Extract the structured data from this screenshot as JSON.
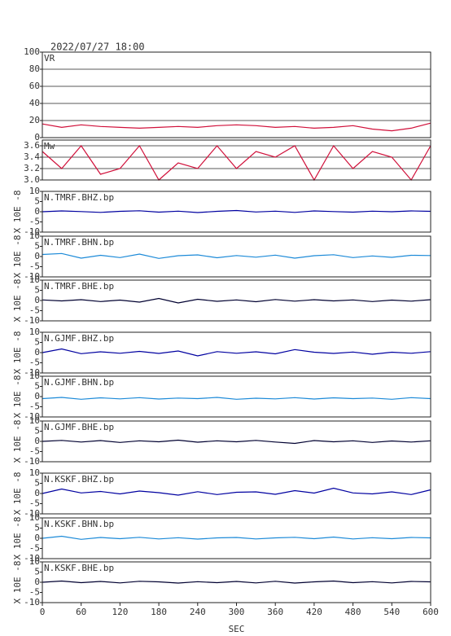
{
  "chart_data": [
    {
      "type": "line",
      "title": "2022/07/27 18:00",
      "label": "VR",
      "color": "#d0103a",
      "x": [
        0,
        30,
        60,
        90,
        120,
        150,
        180,
        210,
        240,
        270,
        300,
        330,
        360,
        390,
        420,
        450,
        480,
        510,
        540,
        570,
        600
      ],
      "values": [
        16,
        12,
        15,
        13,
        12,
        11,
        12,
        13,
        12,
        14,
        15,
        14,
        12,
        13,
        11,
        12,
        14,
        10,
        8,
        11,
        17
      ],
      "xlim": [
        0,
        600
      ],
      "ylim": [
        0,
        100
      ],
      "yticks": [
        0,
        20,
        40,
        60,
        80,
        100
      ],
      "grid": true
    },
    {
      "type": "line",
      "label": "Mw",
      "color": "#d0103a",
      "x": [
        0,
        30,
        60,
        90,
        120,
        150,
        180,
        210,
        240,
        270,
        300,
        330,
        360,
        390,
        420,
        450,
        480,
        510,
        540,
        570,
        600
      ],
      "values": [
        3.5,
        3.2,
        3.6,
        3.1,
        3.2,
        3.6,
        3.0,
        3.3,
        3.2,
        3.6,
        3.2,
        3.5,
        3.4,
        3.6,
        3.0,
        3.6,
        3.2,
        3.5,
        3.4,
        3.0,
        3.6
      ],
      "xlim": [
        0,
        600
      ],
      "ylim": [
        3.0,
        3.7
      ],
      "yticks": [
        {
          "value": 3,
          "label": "3.0"
        },
        3.2,
        3.4,
        3.6
      ],
      "grid": true
    },
    {
      "type": "line",
      "label": "N.TMRF.BHZ.bp",
      "ylabel": "X 10E -8",
      "color": "#0000a0",
      "x": [
        0,
        30,
        60,
        90,
        120,
        150,
        180,
        210,
        240,
        270,
        300,
        330,
        360,
        390,
        420,
        450,
        480,
        510,
        540,
        570,
        600
      ],
      "values": [
        0,
        0.4,
        0.1,
        -0.3,
        0.2,
        0.5,
        -0.2,
        0.3,
        -0.4,
        0.2,
        0.6,
        -0.1,
        0.3,
        -0.3,
        0.4,
        0.1,
        -0.2,
        0.3,
        0,
        0.4,
        0.2
      ],
      "xlim": [
        0,
        600
      ],
      "ylim": [
        -10,
        10
      ],
      "yticks": [
        -10,
        -5,
        0,
        5,
        10
      ]
    },
    {
      "type": "line",
      "label": "N.TMRF.BHN.bp",
      "ylabel": "X 10E -8",
      "color": "#1c8ad8",
      "x": [
        0,
        30,
        60,
        90,
        120,
        150,
        180,
        210,
        240,
        270,
        300,
        330,
        360,
        390,
        420,
        450,
        480,
        510,
        540,
        570,
        600
      ],
      "values": [
        1,
        1.5,
        -0.8,
        0.6,
        -0.5,
        1.2,
        -0.9,
        0.4,
        0.8,
        -0.6,
        0.5,
        -0.3,
        0.7,
        -0.8,
        0.4,
        0.9,
        -0.5,
        0.3,
        -0.4,
        0.6,
        0.5
      ],
      "xlim": [
        0,
        600
      ],
      "ylim": [
        -10,
        10
      ],
      "yticks": [
        -10,
        -5,
        0,
        5,
        10
      ]
    },
    {
      "type": "line",
      "label": "N.TMRF.BHE.bp",
      "ylabel": "X 10E -8",
      "color": "#000030",
      "x": [
        0,
        30,
        60,
        90,
        120,
        150,
        180,
        210,
        240,
        270,
        300,
        330,
        360,
        390,
        420,
        450,
        480,
        510,
        540,
        570,
        600
      ],
      "values": [
        0.3,
        -0.2,
        0.4,
        -0.5,
        0.2,
        -0.8,
        1.0,
        -1.2,
        0.6,
        -0.4,
        0.3,
        -0.6,
        0.5,
        -0.3,
        0.4,
        -0.2,
        0.3,
        -0.5,
        0.2,
        -0.3,
        0.4
      ],
      "xlim": [
        0,
        600
      ],
      "ylim": [
        -10,
        10
      ],
      "yticks": [
        -10,
        -5,
        0,
        5,
        10
      ]
    },
    {
      "type": "line",
      "label": "N.GJMF.BHZ.bp",
      "ylabel": "X 10E -8",
      "color": "#0000a0",
      "x": [
        0,
        30,
        60,
        90,
        120,
        150,
        180,
        210,
        240,
        270,
        300,
        330,
        360,
        390,
        420,
        450,
        480,
        510,
        540,
        570,
        600
      ],
      "values": [
        0,
        1.8,
        -0.5,
        0.4,
        -0.3,
        0.6,
        -0.4,
        0.8,
        -1.6,
        0.5,
        -0.3,
        0.4,
        -0.6,
        1.5,
        0.2,
        -0.4,
        0.3,
        -0.8,
        0.2,
        -0.3,
        0.5
      ],
      "xlim": [
        0,
        600
      ],
      "ylim": [
        -10,
        10
      ],
      "yticks": [
        -10,
        -5,
        0,
        5,
        10
      ]
    },
    {
      "type": "line",
      "label": "N.GJMF.BHN.bp",
      "ylabel": "X 10E -8",
      "color": "#1c8ad8",
      "x": [
        0,
        30,
        60,
        90,
        120,
        150,
        180,
        210,
        240,
        270,
        300,
        330,
        360,
        390,
        420,
        450,
        480,
        510,
        540,
        570,
        600
      ],
      "values": [
        -1,
        -0.4,
        -1.3,
        -0.6,
        -1.1,
        -0.5,
        -1.2,
        -0.7,
        -1.0,
        -0.4,
        -1.3,
        -0.8,
        -1.1,
        -0.5,
        -1.2,
        -0.6,
        -1.0,
        -0.7,
        -1.3,
        -0.5,
        -1.0
      ],
      "xlim": [
        0,
        600
      ],
      "ylim": [
        -10,
        10
      ],
      "yticks": [
        -10,
        -5,
        0,
        5,
        10
      ]
    },
    {
      "type": "line",
      "label": "N.GJMF.BHE.bp",
      "ylabel": "X 10E -8",
      "color": "#000030",
      "x": [
        0,
        30,
        60,
        90,
        120,
        150,
        180,
        210,
        240,
        270,
        300,
        330,
        360,
        390,
        420,
        450,
        480,
        510,
        540,
        570,
        600
      ],
      "values": [
        0,
        0.5,
        -0.3,
        0.4,
        -0.5,
        0.3,
        -0.2,
        0.6,
        -0.4,
        0.3,
        -0.2,
        0.5,
        -0.3,
        -1.0,
        0.4,
        -0.2,
        0.3,
        -0.5,
        0.2,
        -0.3,
        0.3
      ],
      "xlim": [
        0,
        600
      ],
      "ylim": [
        -10,
        10
      ],
      "yticks": [
        -10,
        -5,
        0,
        5,
        10
      ]
    },
    {
      "type": "line",
      "label": "N.KSKF.BHZ.bp",
      "ylabel": "X 10E -8",
      "color": "#0000a0",
      "x": [
        0,
        30,
        60,
        90,
        120,
        150,
        180,
        210,
        240,
        270,
        300,
        330,
        360,
        390,
        420,
        450,
        480,
        510,
        540,
        570,
        600
      ],
      "values": [
        0,
        2.2,
        0.3,
        1.0,
        -0.2,
        1.2,
        0.4,
        -0.8,
        0.9,
        -0.5,
        0.6,
        0.8,
        -0.4,
        1.4,
        0.2,
        2.6,
        0.3,
        -0.2,
        0.8,
        -0.5,
        1.8
      ],
      "xlim": [
        0,
        600
      ],
      "ylim": [
        -10,
        10
      ],
      "yticks": [
        -10,
        -5,
        0,
        5,
        10
      ]
    },
    {
      "type": "line",
      "label": "N.KSKF.BHN.bp",
      "ylabel": "X 10E -8",
      "color": "#1c8ad8",
      "x": [
        0,
        30,
        60,
        90,
        120,
        150,
        180,
        210,
        240,
        270,
        300,
        330,
        360,
        390,
        420,
        450,
        480,
        510,
        540,
        570,
        600
      ],
      "values": [
        0,
        1.0,
        -0.5,
        0.4,
        -0.2,
        0.5,
        -0.3,
        0.3,
        -0.4,
        0.2,
        0.4,
        -0.3,
        0.2,
        0.5,
        -0.2,
        0.6,
        -0.3,
        0.3,
        -0.2,
        0.4,
        0.2
      ],
      "xlim": [
        0,
        600
      ],
      "ylim": [
        -10,
        10
      ],
      "yticks": [
        -10,
        -5,
        0,
        5,
        10
      ]
    },
    {
      "type": "line",
      "label": "N.KSKF.BHE.bp",
      "ylabel": "X 10E -8",
      "xlabel": "SEC",
      "color": "#000030",
      "x": [
        0,
        30,
        60,
        90,
        120,
        150,
        180,
        210,
        240,
        270,
        300,
        330,
        360,
        390,
        420,
        450,
        480,
        510,
        540,
        570,
        600
      ],
      "values": [
        0,
        0.6,
        -0.2,
        0.4,
        -0.3,
        0.5,
        0.2,
        -0.4,
        0.3,
        -0.2,
        0.4,
        -0.3,
        0.5,
        -0.4,
        0.2,
        0.6,
        -0.2,
        0.3,
        -0.3,
        0.4,
        0.2
      ],
      "xlim": [
        0,
        600
      ],
      "ylim": [
        -10,
        10
      ],
      "yticks": [
        -10,
        -5,
        0,
        5,
        10
      ],
      "xticks": [
        0,
        60,
        120,
        180,
        240,
        300,
        360,
        420,
        480,
        540,
        600
      ]
    }
  ]
}
